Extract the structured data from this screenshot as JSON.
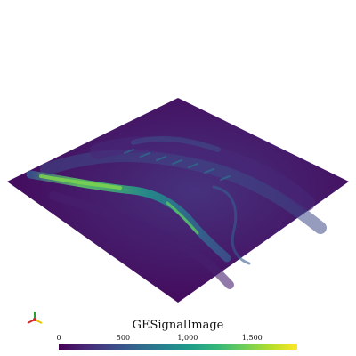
{
  "scalar_bar": {
    "title": "GESignalImage",
    "colormap": "viridis",
    "ticks": [
      {
        "value": 0,
        "label": "0"
      },
      {
        "value": 500,
        "label": "500"
      },
      {
        "value": 1000,
        "label": "1,000"
      },
      {
        "value": 1500,
        "label": "1,500"
      }
    ],
    "range": [
      0,
      1850
    ]
  },
  "colors": {
    "background": "#ffffff",
    "low": "#440154",
    "mid": "#21918c",
    "high": "#fde725"
  },
  "orientation_widget": {
    "icon": "xyz-axes-icon",
    "colors": [
      "#d62728",
      "#e6c300",
      "#2ca02c"
    ]
  }
}
